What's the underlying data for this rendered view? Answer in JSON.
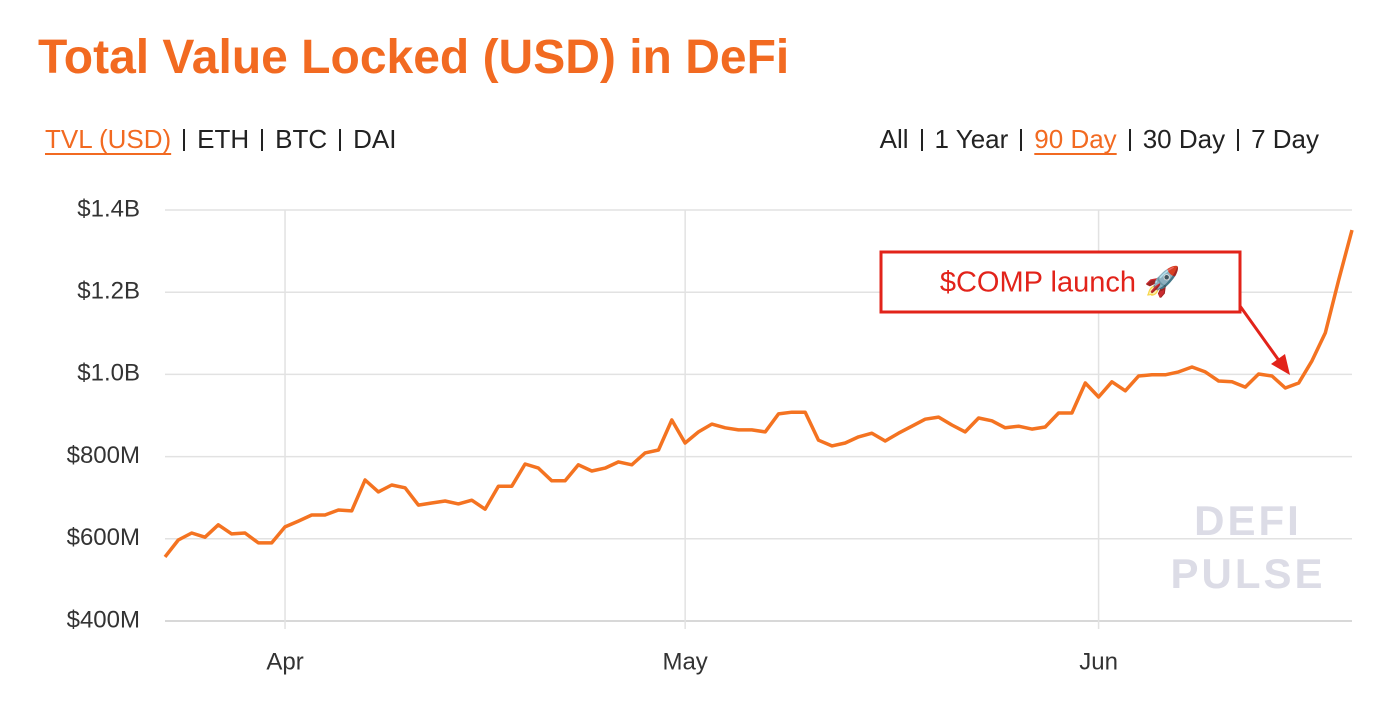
{
  "chart_data": {
    "type": "line",
    "title": "Total Value Locked (USD) in DeFi",
    "categories": [
      null,
      null,
      null,
      null,
      null,
      null,
      null,
      null,
      null,
      "Apr",
      null,
      null,
      null,
      null,
      null,
      null,
      null,
      null,
      null,
      null,
      null,
      null,
      null,
      null,
      null,
      null,
      null,
      null,
      null,
      null,
      null,
      null,
      null,
      null,
      null,
      null,
      null,
      null,
      null,
      "May",
      null,
      null,
      null,
      null,
      null,
      null,
      null,
      null,
      null,
      null,
      null,
      null,
      null,
      null,
      null,
      null,
      null,
      null,
      null,
      null,
      null,
      null,
      null,
      null,
      null,
      null,
      null,
      null,
      null,
      null,
      "Jun",
      null,
      null,
      null,
      null,
      null,
      null,
      null,
      null,
      null,
      null,
      null,
      null,
      null,
      null,
      null,
      null,
      null,
      null,
      null
    ],
    "series": [
      {
        "name": "TVL (USD)",
        "color": "#f47321",
        "values": [
          556000000,
          597000000,
          614000000,
          604000000,
          634000000,
          612000000,
          614000000,
          590000000,
          590000000,
          629000000,
          643000000,
          658000000,
          658000000,
          670000000,
          668000000,
          743000000,
          714000000,
          731000000,
          724000000,
          682000000,
          687000000,
          692000000,
          685000000,
          694000000,
          672000000,
          728000000,
          728000000,
          782000000,
          772000000,
          741000000,
          741000000,
          780000000,
          765000000,
          772000000,
          787000000,
          780000000,
          809000000,
          816000000,
          889000000,
          833000000,
          860000000,
          879000000,
          870000000,
          865000000,
          865000000,
          860000000,
          904000000,
          908000000,
          908000000,
          840000000,
          826000000,
          833000000,
          848000000,
          857000000,
          838000000,
          857000000,
          874000000,
          891000000,
          896000000,
          877000000,
          860000000,
          894000000,
          887000000,
          870000000,
          874000000,
          867000000,
          872000000,
          906000000,
          906000000,
          979000000,
          945000000,
          982000000,
          960000000,
          996000000,
          999000000,
          999000000,
          1006000000,
          1018000000,
          1006000000,
          984000000,
          982000000,
          969000000,
          1001000000,
          996000000,
          967000000,
          979000000,
          1033000000,
          1101000000,
          1230000000,
          1351000000
        ]
      }
    ],
    "ylim": [
      400000000,
      1400000000
    ],
    "yticks": [
      {
        "value": 400000000,
        "label": "$400M"
      },
      {
        "value": 600000000,
        "label": "$600M"
      },
      {
        "value": 800000000,
        "label": "$800M"
      },
      {
        "value": 1000000000,
        "label": "$1.0B"
      },
      {
        "value": 1200000000,
        "label": "$1.2B"
      },
      {
        "value": 1400000000,
        "label": "$1.4B"
      }
    ],
    "grid": true,
    "annotations": [
      {
        "text": "$COMP launch 🚀"
      }
    ],
    "watermark": [
      "DEFI",
      "PULSE"
    ]
  },
  "controls": {
    "metrics": [
      {
        "label": "TVL (USD)",
        "selected": true
      },
      {
        "label": "ETH",
        "selected": false
      },
      {
        "label": "BTC",
        "selected": false
      },
      {
        "label": "DAI",
        "selected": false
      }
    ],
    "ranges": [
      {
        "label": "All",
        "selected": false
      },
      {
        "label": "1 Year",
        "selected": false
      },
      {
        "label": "90 Day",
        "selected": true
      },
      {
        "label": "30 Day",
        "selected": false
      },
      {
        "label": "7 Day",
        "selected": false
      }
    ]
  }
}
